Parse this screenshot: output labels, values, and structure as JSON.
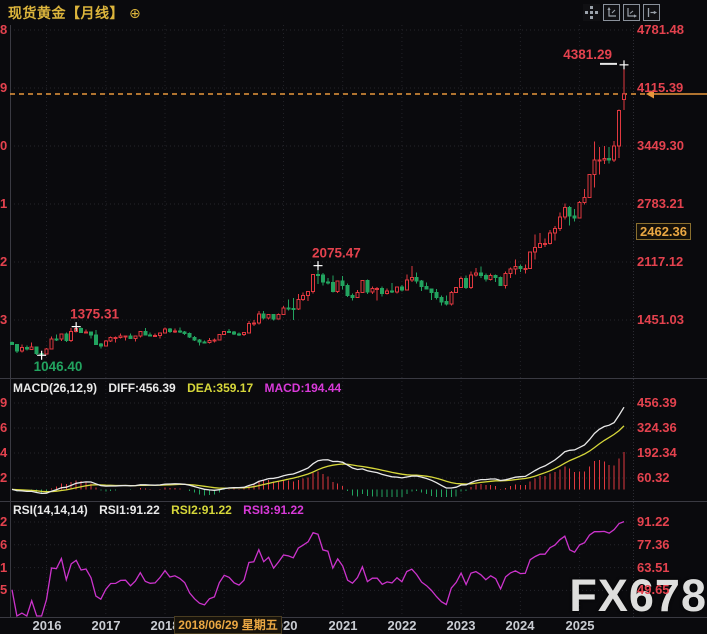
{
  "header": {
    "title": "现货黄金【月线】",
    "expand_icon": "⊕"
  },
  "toolbar": {
    "icons": [
      "move-tool",
      "y-axis-zoom",
      "x-axis-zoom",
      "pan-right"
    ]
  },
  "macd_header": {
    "name": "MACD(26,12,9)",
    "diff": "DIFF:456.39",
    "dea": "DEA:359.17",
    "macd": "MACD:194.44"
  },
  "rsi_header": {
    "name": "RSI(14,14,14)",
    "rsi1": "RSI1:91.22",
    "rsi2": "RSI2:91.22",
    "rsi3": "RSI3:91.22"
  },
  "crosshair": {
    "price_label": "2462.36",
    "date_label": "2018/06/29 星期五"
  },
  "watermark": "FX678",
  "colors": {
    "up_red": "#e0383f",
    "down_green": "#22a35f",
    "accent_orange": "#e8973c",
    "diff_white": "#e8e8e8",
    "dea_yellow": "#d6d73a",
    "rsi_magenta": "#cc33cc",
    "label_red": "#e4424e",
    "title_gold": "#dcb53c"
  },
  "axes": {
    "main": {
      "ticks": [
        "4781.48",
        "4115.39",
        "3449.30",
        "2783.21",
        "2117.12",
        "1451.03"
      ],
      "left_partial_digits": [
        "8",
        "9",
        "0",
        "1",
        "2",
        "3"
      ]
    },
    "macd": {
      "ticks": [
        "456.39",
        "324.36",
        "192.34",
        "60.32"
      ],
      "left_partial_digits": [
        "9",
        "6",
        "4",
        "2"
      ]
    },
    "rsi": {
      "ticks": [
        "91.22",
        "77.36",
        "63.51",
        "49.65"
      ],
      "left_partial_digits": [
        "2",
        "6",
        "1",
        "5"
      ]
    },
    "x": {
      "years": [
        "2016",
        "2017",
        "2018",
        "2019",
        "2020",
        "2021",
        "2022",
        "2023",
        "2024",
        "2025"
      ]
    }
  },
  "chart_data": [
    {
      "type": "candlestick",
      "title": "现货黄金 月线",
      "x_start_month": "2015-06",
      "x_end_month": "2025-10",
      "y_ticks": [
        4781.48,
        4115.39,
        3449.3,
        2783.21,
        2117.12,
        1451.03
      ],
      "current_price_line": 4046,
      "up_color_rule": "close>=open red hollow, else green solid",
      "candles": [
        [
          1190,
          1205,
          1162,
          1172
        ],
        [
          1172,
          1175,
          1072,
          1095
        ],
        [
          1095,
          1168,
          1080,
          1135
        ],
        [
          1135,
          1156,
          1098,
          1115
        ],
        [
          1115,
          1191,
          1104,
          1142
        ],
        [
          1142,
          1146,
          1052,
          1065
        ],
        [
          1065,
          1088,
          1046.4,
          1061
        ],
        [
          1061,
          1128,
          1061,
          1118
        ],
        [
          1118,
          1263,
          1117,
          1234
        ],
        [
          1234,
          1284,
          1208,
          1232
        ],
        [
          1232,
          1296,
          1208,
          1290
        ],
        [
          1290,
          1306,
          1199,
          1215
        ],
        [
          1215,
          1359,
          1200,
          1320
        ],
        [
          1320,
          1375.31,
          1310,
          1351
        ],
        [
          1351,
          1367,
          1302,
          1309
        ],
        [
          1309,
          1344,
          1301,
          1316
        ],
        [
          1316,
          1321,
          1241,
          1277
        ],
        [
          1277,
          1338,
          1170,
          1173
        ],
        [
          1173,
          1188,
          1122,
          1152
        ],
        [
          1152,
          1220,
          1146,
          1210
        ],
        [
          1210,
          1264,
          1199,
          1248
        ],
        [
          1248,
          1261,
          1195,
          1249
        ],
        [
          1249,
          1295,
          1240,
          1268
        ],
        [
          1268,
          1273,
          1214,
          1269
        ],
        [
          1269,
          1296,
          1236,
          1242
        ],
        [
          1242,
          1270,
          1204,
          1269
        ],
        [
          1269,
          1325,
          1251,
          1321
        ],
        [
          1321,
          1357,
          1278,
          1280
        ],
        [
          1280,
          1306,
          1260,
          1271
        ],
        [
          1271,
          1297,
          1265,
          1273
        ],
        [
          1273,
          1307,
          1236,
          1303
        ],
        [
          1303,
          1366,
          1302,
          1345
        ],
        [
          1345,
          1361,
          1302,
          1318
        ],
        [
          1318,
          1356,
          1302,
          1325
        ],
        [
          1325,
          1365,
          1301,
          1315
        ],
        [
          1315,
          1325,
          1281,
          1298
        ],
        [
          1298,
          1309,
          1247,
          1253
        ],
        [
          1253,
          1265,
          1211,
          1224
        ],
        [
          1224,
          1235,
          1160,
          1201
        ],
        [
          1201,
          1214,
          1181,
          1192
        ],
        [
          1192,
          1243,
          1180,
          1215
        ],
        [
          1215,
          1237,
          1195,
          1222
        ],
        [
          1222,
          1284,
          1221,
          1282
        ],
        [
          1282,
          1326,
          1276,
          1321
        ],
        [
          1321,
          1346,
          1305,
          1313
        ],
        [
          1313,
          1324,
          1280,
          1292
        ],
        [
          1292,
          1310,
          1266,
          1283
        ],
        [
          1283,
          1307,
          1266,
          1305
        ],
        [
          1305,
          1439,
          1305,
          1409
        ],
        [
          1409,
          1452,
          1381,
          1414
        ],
        [
          1414,
          1555,
          1400,
          1520
        ],
        [
          1520,
          1557,
          1459,
          1472
        ],
        [
          1472,
          1519,
          1458,
          1512
        ],
        [
          1512,
          1516,
          1445,
          1464
        ],
        [
          1464,
          1525,
          1458,
          1517
        ],
        [
          1517,
          1611,
          1517,
          1589
        ],
        [
          1589,
          1689,
          1563,
          1585
        ],
        [
          1585,
          1703,
          1451,
          1577
        ],
        [
          1577,
          1747,
          1568,
          1687
        ],
        [
          1687,
          1765,
          1670,
          1730
        ],
        [
          1730,
          1785,
          1671,
          1781
        ],
        [
          1781,
          1981,
          1757,
          1976
        ],
        [
          1976,
          2075.47,
          1863,
          1968
        ],
        [
          1968,
          1992,
          1849,
          1886
        ],
        [
          1886,
          1933,
          1860,
          1879
        ],
        [
          1879,
          1965,
          1765,
          1777
        ],
        [
          1777,
          1906,
          1764,
          1898
        ],
        [
          1898,
          1959,
          1803,
          1848
        ],
        [
          1848,
          1871,
          1717,
          1734
        ],
        [
          1734,
          1755,
          1677,
          1708
        ],
        [
          1708,
          1798,
          1706,
          1769
        ],
        [
          1769,
          1912,
          1765,
          1907
        ],
        [
          1907,
          1916,
          1750,
          1770
        ],
        [
          1770,
          1834,
          1751,
          1814
        ],
        [
          1814,
          1831,
          1677,
          1814
        ],
        [
          1814,
          1834,
          1721,
          1757
        ],
        [
          1757,
          1813,
          1746,
          1783
        ],
        [
          1783,
          1877,
          1759,
          1775
        ],
        [
          1775,
          1830,
          1753,
          1829
        ],
        [
          1829,
          1853,
          1780,
          1797
        ],
        [
          1797,
          1974,
          1788,
          1909
        ],
        [
          1909,
          2070,
          1890,
          1937
        ],
        [
          1937,
          1998,
          1872,
          1897
        ],
        [
          1897,
          1910,
          1787,
          1837
        ],
        [
          1837,
          1879,
          1805,
          1807
        ],
        [
          1807,
          1814,
          1681,
          1766
        ],
        [
          1766,
          1808,
          1688,
          1711
        ],
        [
          1711,
          1735,
          1615,
          1661
        ],
        [
          1661,
          1730,
          1617,
          1633
        ],
        [
          1633,
          1787,
          1616,
          1768
        ],
        [
          1768,
          1825,
          1765,
          1824
        ],
        [
          1824,
          1949,
          1823,
          1928
        ],
        [
          1928,
          1960,
          1805,
          1827
        ],
        [
          1827,
          2010,
          1809,
          1969
        ],
        [
          1969,
          2049,
          1949,
          1990
        ],
        [
          1990,
          2063,
          1932,
          1962
        ],
        [
          1962,
          1983,
          1893,
          1919
        ],
        [
          1919,
          1987,
          1902,
          1965
        ],
        [
          1965,
          1972,
          1885,
          1940
        ],
        [
          1940,
          1953,
          1848,
          1849
        ],
        [
          1849,
          2009,
          1810,
          1984
        ],
        [
          1984,
          2052,
          1931,
          2036
        ],
        [
          2036,
          2144,
          1973,
          2063
        ],
        [
          2063,
          2088,
          2002,
          2040
        ],
        [
          2040,
          2088,
          1984,
          2044
        ],
        [
          2044,
          2236,
          2039,
          2230
        ],
        [
          2230,
          2432,
          2146,
          2286
        ],
        [
          2286,
          2450,
          2277,
          2327
        ],
        [
          2327,
          2388,
          2287,
          2327
        ],
        [
          2327,
          2484,
          2319,
          2448
        ],
        [
          2448,
          2532,
          2365,
          2503
        ],
        [
          2503,
          2685,
          2472,
          2635
        ],
        [
          2635,
          2790,
          2604,
          2744
        ],
        [
          2744,
          2762,
          2537,
          2643
        ],
        [
          2643,
          2726,
          2583,
          2625
        ],
        [
          2625,
          2817,
          2614,
          2798
        ],
        [
          2798,
          2956,
          2780,
          2858
        ],
        [
          2858,
          3128,
          2857,
          3124
        ],
        [
          3124,
          3500,
          2970,
          3289
        ],
        [
          3289,
          3438,
          3120,
          3289
        ],
        [
          3289,
          3452,
          3245,
          3303
        ],
        [
          3303,
          3439,
          3248,
          3290
        ],
        [
          3290,
          3508,
          3268,
          3448
        ],
        [
          3448,
          3871,
          3311,
          3858
        ],
        [
          3980,
          4381.29,
          3860,
          4046
        ]
      ],
      "annotations": [
        {
          "index": 6,
          "price": 1046.4,
          "label": "1046.40",
          "type": "low"
        },
        {
          "index": 13,
          "price": 1375.31,
          "label": "1375.31",
          "type": "high"
        },
        {
          "index": 62,
          "price": 2075.47,
          "label": "2075.47",
          "type": "high"
        },
        {
          "index": 124,
          "price": 4381.29,
          "label": "4381.29",
          "type": "high"
        }
      ]
    },
    {
      "type": "macd",
      "params": "26,12,9",
      "computed_from": "candlestick closes",
      "readout": {
        "diff": 456.39,
        "dea": 359.17,
        "macd": 194.44
      },
      "y_ticks": [
        456.39,
        324.36,
        192.34,
        60.32
      ]
    },
    {
      "type": "rsi",
      "params": "14,14,14",
      "readout": {
        "rsi1": 91.22,
        "rsi2": 91.22,
        "rsi3": 91.22
      },
      "y_ticks": [
        91.22,
        77.36,
        63.51,
        49.65
      ]
    }
  ]
}
